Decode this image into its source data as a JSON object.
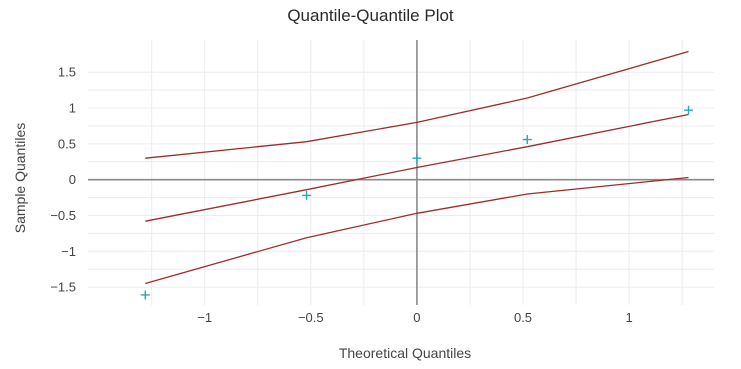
{
  "chart_data": {
    "type": "scatter",
    "title": "Quantile-Quantile Plot",
    "xlabel": "Theoretical Quantiles",
    "ylabel": "Sample Quantiles",
    "xlim": [
      -1.55,
      1.4
    ],
    "ylim": [
      -1.75,
      1.95
    ],
    "grid": true,
    "x_ticks": [
      -1,
      -0.5,
      0,
      0.5,
      1
    ],
    "x_tick_labels": [
      "−1",
      "−0.5",
      "0",
      "0.5",
      "1"
    ],
    "y_ticks": [
      -1.5,
      -1,
      -0.5,
      0,
      0.5,
      1,
      1.5
    ],
    "y_tick_labels": [
      "−1.5",
      "−1",
      "−0.5",
      "0",
      "0.5",
      "1",
      "1.5"
    ],
    "points": {
      "x": [
        -1.28,
        -0.52,
        0.0,
        0.52,
        1.28
      ],
      "y": [
        -1.61,
        -0.22,
        0.3,
        0.56,
        0.97
      ],
      "color": "#2aa6b8",
      "marker": "+"
    },
    "lines": [
      {
        "x": [
          -1.28,
          -0.52,
          0.0,
          0.52,
          1.28
        ],
        "y": [
          -0.58,
          -0.14,
          0.17,
          0.46,
          0.91
        ]
      },
      {
        "x": [
          -1.28,
          -0.52,
          0.0,
          0.52,
          1.28
        ],
        "y": [
          0.3,
          0.53,
          0.8,
          1.14,
          1.79
        ]
      },
      {
        "x": [
          -1.28,
          -0.52,
          0.0,
          0.52,
          1.28
        ],
        "y": [
          -1.45,
          -0.81,
          -0.47,
          -0.2,
          0.03
        ]
      }
    ],
    "line_color": "#9b2d2d",
    "axis_color": "#8a8a8a",
    "grid_color": "#ececec"
  }
}
